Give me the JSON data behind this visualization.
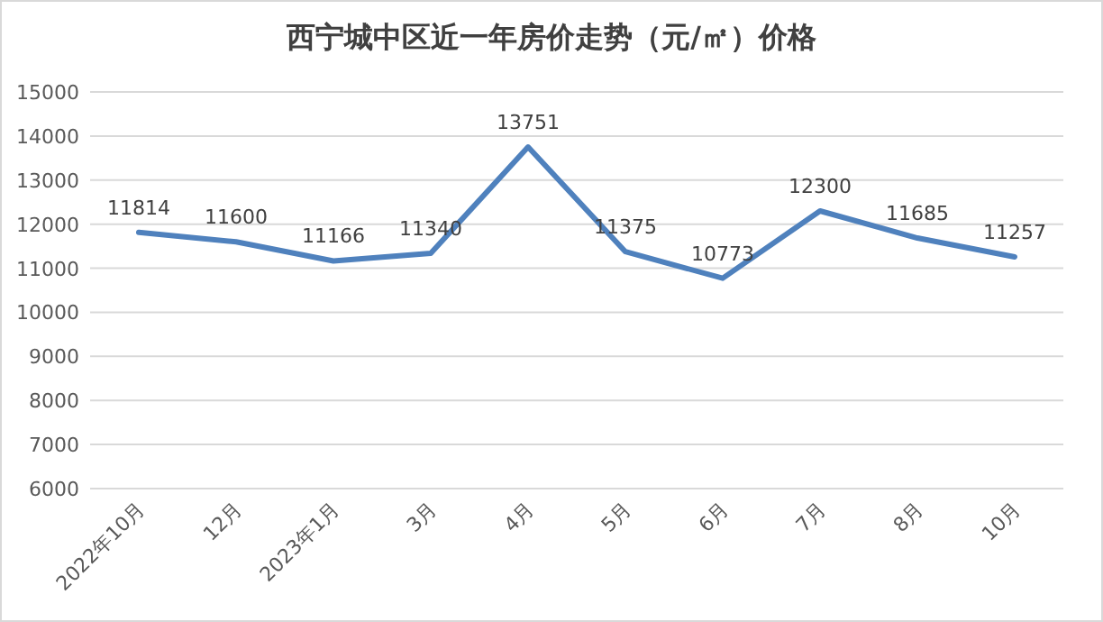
{
  "chart_data": {
    "type": "line",
    "title": "西宁城中区近一年房价走势（元/㎡）价格",
    "categories": [
      "2022年10月",
      "12月",
      "2023年1月",
      "3月",
      "4月",
      "5月",
      "6月",
      "7月",
      "8月",
      "10月"
    ],
    "values": [
      11814,
      11600,
      11166,
      11340,
      13751,
      11375,
      10773,
      12300,
      11685,
      11257
    ],
    "color": "#4f81bd",
    "ylim": [
      6000,
      15000
    ],
    "yticks": [
      6000,
      7000,
      8000,
      9000,
      10000,
      11000,
      12000,
      13000,
      14000,
      15000
    ],
    "grid": "y",
    "data_labels": true,
    "legend": false,
    "marker": "none",
    "line_style": "solid"
  }
}
